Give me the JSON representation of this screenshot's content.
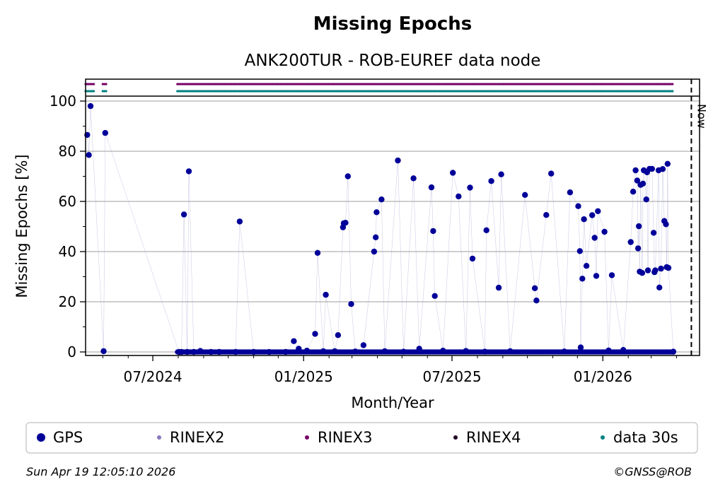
{
  "chart_data": {
    "type": "scatter",
    "title": "Missing Epochs",
    "subtitle": "ANK200TUR - ROB-EUREF data node",
    "xlabel": "Month/Year",
    "ylabel": "Missing Epochs [%]",
    "ylim": [
      0,
      100
    ],
    "y_ticks": [
      "0",
      "20",
      "40",
      "60",
      "80",
      "100"
    ],
    "x_ticks": [
      "07/2024",
      "01/2025",
      "07/2025",
      "01/2026"
    ],
    "grid": "horizontal",
    "now_label": "Now",
    "series": [
      {
        "name": "GPS",
        "color": "#000099",
        "points": [
          {
            "x": "2024-04-12",
            "y": 86.5
          },
          {
            "x": "2024-04-14",
            "y": 78.5
          },
          {
            "x": "2024-04-16",
            "y": 98
          },
          {
            "x": "2024-05-02",
            "y": 0.3
          },
          {
            "x": "2024-05-04",
            "y": 87.3
          },
          {
            "x": "2024-08-02",
            "y": 0
          },
          {
            "x": "2024-08-05",
            "y": 0
          },
          {
            "x": "2024-08-08",
            "y": 54.8
          },
          {
            "x": "2024-08-12",
            "y": 0
          },
          {
            "x": "2024-08-14",
            "y": 72
          },
          {
            "x": "2024-08-20",
            "y": 0
          },
          {
            "x": "2024-08-28",
            "y": 0.4
          },
          {
            "x": "2024-09-10",
            "y": 0
          },
          {
            "x": "2024-09-20",
            "y": 0
          },
          {
            "x": "2024-10-10",
            "y": 0
          },
          {
            "x": "2024-10-15",
            "y": 52
          },
          {
            "x": "2024-11-01",
            "y": 0
          },
          {
            "x": "2024-11-20",
            "y": 0
          },
          {
            "x": "2024-12-10",
            "y": 0
          },
          {
            "x": "2024-12-20",
            "y": 4.3
          },
          {
            "x": "2024-12-26",
            "y": 1.3
          },
          {
            "x": "2025-01-05",
            "y": 0.5
          },
          {
            "x": "2025-01-15",
            "y": 7.2
          },
          {
            "x": "2025-01-18",
            "y": 39.5
          },
          {
            "x": "2025-01-25",
            "y": 0.3
          },
          {
            "x": "2025-01-28",
            "y": 22.8
          },
          {
            "x": "2025-02-08",
            "y": 0.3
          },
          {
            "x": "2025-02-12",
            "y": 6.7
          },
          {
            "x": "2025-02-18",
            "y": 49.7
          },
          {
            "x": "2025-02-19",
            "y": 51.3
          },
          {
            "x": "2025-02-21",
            "y": 51.5
          },
          {
            "x": "2025-02-24",
            "y": 70
          },
          {
            "x": "2025-02-28",
            "y": 19.1
          },
          {
            "x": "2025-03-05",
            "y": 0.2
          },
          {
            "x": "2025-03-15",
            "y": 2.7
          },
          {
            "x": "2025-03-28",
            "y": 40
          },
          {
            "x": "2025-03-30",
            "y": 45.7
          },
          {
            "x": "2025-03-31",
            "y": 55.7
          },
          {
            "x": "2025-04-06",
            "y": 60.8
          },
          {
            "x": "2025-04-10",
            "y": 0.3
          },
          {
            "x": "2025-04-26",
            "y": 76.3
          },
          {
            "x": "2025-05-03",
            "y": 0.1
          },
          {
            "x": "2025-05-15",
            "y": 69.2
          },
          {
            "x": "2025-05-22",
            "y": 1.3
          },
          {
            "x": "2025-06-06",
            "y": 65.6
          },
          {
            "x": "2025-06-08",
            "y": 48.2
          },
          {
            "x": "2025-06-10",
            "y": 22.3
          },
          {
            "x": "2025-06-20",
            "y": 0.5
          },
          {
            "x": "2025-07-02",
            "y": 71.4
          },
          {
            "x": "2025-07-09",
            "y": 62
          },
          {
            "x": "2025-07-18",
            "y": 0.4
          },
          {
            "x": "2025-07-23",
            "y": 65.5
          },
          {
            "x": "2025-07-26",
            "y": 37.2
          },
          {
            "x": "2025-08-10",
            "y": 0.1
          },
          {
            "x": "2025-08-12",
            "y": 48.5
          },
          {
            "x": "2025-08-18",
            "y": 68.1
          },
          {
            "x": "2025-08-27",
            "y": 25.6
          },
          {
            "x": "2025-08-30",
            "y": 70.8
          },
          {
            "x": "2025-09-10",
            "y": 0.3
          },
          {
            "x": "2025-09-28",
            "y": 62.6
          },
          {
            "x": "2025-10-10",
            "y": 25.4
          },
          {
            "x": "2025-10-12",
            "y": 20.5
          },
          {
            "x": "2025-10-24",
            "y": 54.6
          },
          {
            "x": "2025-10-30",
            "y": 71.1
          },
          {
            "x": "2025-11-15",
            "y": 0.2
          },
          {
            "x": "2025-11-22",
            "y": 63.6
          },
          {
            "x": "2025-12-02",
            "y": 58.1
          },
          {
            "x": "2025-12-04",
            "y": 40.2
          },
          {
            "x": "2025-12-05",
            "y": 1.8
          },
          {
            "x": "2025-12-07",
            "y": 29.2
          },
          {
            "x": "2025-12-09",
            "y": 52.9
          },
          {
            "x": "2025-12-12",
            "y": 34.3
          },
          {
            "x": "2025-12-19",
            "y": 54.5
          },
          {
            "x": "2025-12-22",
            "y": 45.5
          },
          {
            "x": "2025-12-24",
            "y": 30.3
          },
          {
            "x": "2025-12-26",
            "y": 56.1
          },
          {
            "x": "2026-01-03",
            "y": 47.9
          },
          {
            "x": "2026-01-08",
            "y": 0.6
          },
          {
            "x": "2026-01-12",
            "y": 30.6
          },
          {
            "x": "2026-01-26",
            "y": 0.8
          },
          {
            "x": "2026-02-04",
            "y": 43.8
          },
          {
            "x": "2026-02-07",
            "y": 63.9
          },
          {
            "x": "2026-02-10",
            "y": 72.4
          },
          {
            "x": "2026-02-12",
            "y": 68.3
          },
          {
            "x": "2026-02-13",
            "y": 41.3
          },
          {
            "x": "2026-02-14",
            "y": 50.1
          },
          {
            "x": "2026-02-15",
            "y": 32
          },
          {
            "x": "2026-02-16",
            "y": 66.6
          },
          {
            "x": "2026-02-18",
            "y": 31.5
          },
          {
            "x": "2026-02-19",
            "y": 67.1
          },
          {
            "x": "2026-02-20",
            "y": 72.4
          },
          {
            "x": "2026-02-23",
            "y": 60.8
          },
          {
            "x": "2026-02-24",
            "y": 71.6
          },
          {
            "x": "2026-02-25",
            "y": 32.5
          },
          {
            "x": "2026-02-27",
            "y": 73
          },
          {
            "x": "2026-03-02",
            "y": 73
          },
          {
            "x": "2026-03-04",
            "y": 47.5
          },
          {
            "x": "2026-03-05",
            "y": 31.8
          },
          {
            "x": "2026-03-06",
            "y": 32.5
          },
          {
            "x": "2026-03-10",
            "y": 72.4
          },
          {
            "x": "2026-03-11",
            "y": 25.7
          },
          {
            "x": "2026-03-13",
            "y": 33.2
          },
          {
            "x": "2026-03-15",
            "y": 72.9
          },
          {
            "x": "2026-03-17",
            "y": 52.2
          },
          {
            "x": "2026-03-19",
            "y": 50.9
          },
          {
            "x": "2026-03-20",
            "y": 33.8
          },
          {
            "x": "2026-03-21",
            "y": 75
          },
          {
            "x": "2026-03-22",
            "y": 33.5
          },
          {
            "x": "2026-03-28",
            "y": 0.1
          }
        ]
      },
      {
        "name": "RINEX2",
        "color": "#8877bb",
        "points": []
      },
      {
        "name": "RINEX3",
        "color": "#770066",
        "points": []
      },
      {
        "name": "RINEX4",
        "color": "#220022",
        "points": []
      },
      {
        "name": "data 30s",
        "color": "#008080",
        "points": []
      }
    ],
    "availability_strip": {
      "rinex3_ranges": [
        [
          "2024-04-10",
          "2024-04-20"
        ],
        [
          "2024-05-01",
          "2024-05-05"
        ],
        [
          "2024-07-31",
          "2026-03-28"
        ]
      ],
      "data30s_ranges": [
        [
          "2024-04-10",
          "2024-04-20"
        ],
        [
          "2024-05-01",
          "2024-05-05"
        ],
        [
          "2024-07-31",
          "2026-03-28"
        ]
      ]
    },
    "x_domain": [
      "2024-04-10",
      "2026-04-29"
    ],
    "now_date": "2026-04-19"
  },
  "legend": {
    "items": [
      {
        "label": "GPS",
        "color": "#000099",
        "marker": "large-dot"
      },
      {
        "label": "RINEX2",
        "color": "#8877bb",
        "marker": "small-dot"
      },
      {
        "label": "RINEX3",
        "color": "#770066",
        "marker": "small-dot"
      },
      {
        "label": "RINEX4",
        "color": "#220022",
        "marker": "small-dot"
      },
      {
        "label": "data 30s",
        "color": "#008080",
        "marker": "small-dot"
      }
    ]
  },
  "footer": {
    "timestamp": "Sun Apr 19 12:05:10 2026",
    "copyright": "©GNSS@ROB"
  }
}
